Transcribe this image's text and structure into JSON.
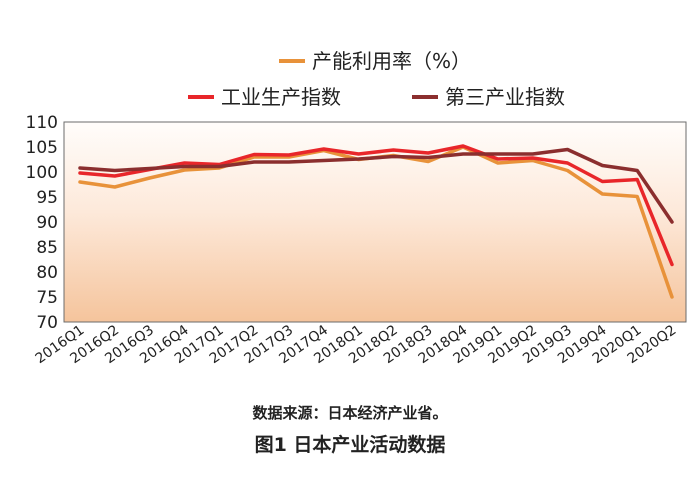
{
  "chart_data": {
    "type": "line",
    "title": "",
    "xlabel": "",
    "ylabel": "",
    "ylim": [
      70,
      110
    ],
    "y_ticks": [
      110,
      105,
      100,
      95,
      90,
      85,
      80,
      75,
      70
    ],
    "grid": false,
    "legend_position": "top",
    "background": "gradient white-to-peach (top to bottom)",
    "categories": [
      "2016Q1",
      "2016Q2",
      "2016Q3",
      "2016Q4",
      "2017Q1",
      "2017Q2",
      "2017Q3",
      "2017Q4",
      "2018Q1",
      "2018Q2",
      "2018Q3",
      "2018Q4",
      "2019Q1",
      "2019Q2",
      "2019Q3",
      "2019Q4",
      "2020Q1",
      "2020Q2"
    ],
    "series": [
      {
        "name": "产能利用率（%）",
        "color": "#E8923A",
        "values": [
          98.0,
          97.0,
          98.8,
          100.4,
          100.8,
          103.0,
          103.0,
          104.3,
          102.5,
          103.3,
          102.1,
          105.0,
          101.8,
          102.3,
          100.3,
          95.6,
          95.1,
          75.0
        ]
      },
      {
        "name": "工业生产指数",
        "color": "#E8262A",
        "values": [
          99.8,
          99.2,
          100.5,
          101.8,
          101.5,
          103.5,
          103.4,
          104.6,
          103.6,
          104.4,
          103.8,
          105.2,
          102.6,
          102.8,
          101.8,
          98.1,
          98.5,
          81.5
        ]
      },
      {
        "name": "第三产业指数",
        "color": "#8B2E2E",
        "values": [
          100.8,
          100.3,
          100.7,
          101.1,
          101.1,
          102.0,
          102.0,
          102.3,
          102.6,
          103.1,
          102.9,
          103.6,
          103.6,
          103.6,
          104.5,
          101.3,
          100.3,
          90.0
        ]
      }
    ]
  },
  "notes": {
    "source": "数据来源：日本经济产业省。",
    "caption": "图1  日本产业活动数据"
  }
}
